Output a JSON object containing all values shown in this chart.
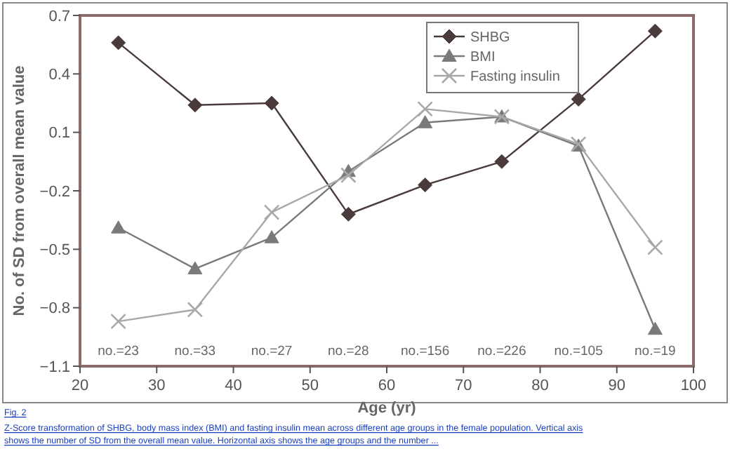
{
  "chart_data": {
    "type": "line",
    "xlabel": "Age (yr)",
    "ylabel": "No. of SD from overall mean value",
    "x": [
      25,
      35,
      45,
      55,
      65,
      75,
      85,
      95
    ],
    "series": [
      {
        "name": "SHBG",
        "color": "#4a3a3a",
        "marker": "diamond",
        "values": [
          0.56,
          0.24,
          0.25,
          -0.32,
          -0.17,
          -0.05,
          0.27,
          0.62
        ]
      },
      {
        "name": "BMI",
        "color": "#7a7a7a",
        "marker": "triangle",
        "values": [
          -0.39,
          -0.6,
          -0.44,
          -0.1,
          0.15,
          0.18,
          0.03,
          -0.91
        ]
      },
      {
        "name": "Fasting insulin",
        "color": "#a8a8a8",
        "marker": "cross",
        "values": [
          -0.87,
          -0.81,
          -0.31,
          -0.12,
          0.22,
          0.18,
          0.04,
          -0.49
        ]
      }
    ],
    "xlim": [
      20,
      100
    ],
    "xticks": [
      20,
      30,
      40,
      50,
      60,
      70,
      80,
      90,
      100
    ],
    "ylim": [
      -1.1,
      0.7
    ],
    "yticks": [
      {
        "value": -1.1,
        "label": "−1.1"
      },
      {
        "value": -0.8,
        "label": "−0.8"
      },
      {
        "value": -0.5,
        "label": "−0.5"
      },
      {
        "value": -0.2,
        "label": "−0.2"
      },
      0.1,
      0.4,
      0.7
    ],
    "legend": "top right",
    "grid": false,
    "annotations": [
      "no.=23",
      "no.=33",
      "no.=27",
      "no.=28",
      "no.=156",
      "no.=226",
      "no.=105",
      "no.=19",
      "Fig. 2",
      "Z-Score transformation of SHBG, body mass index (BMI) and fasting insulin mean across different age groups in the female population. Vertical axis shows the number of SD from the overall mean value. Horizontal axis shows the age groups and the number ..."
    ]
  }
}
